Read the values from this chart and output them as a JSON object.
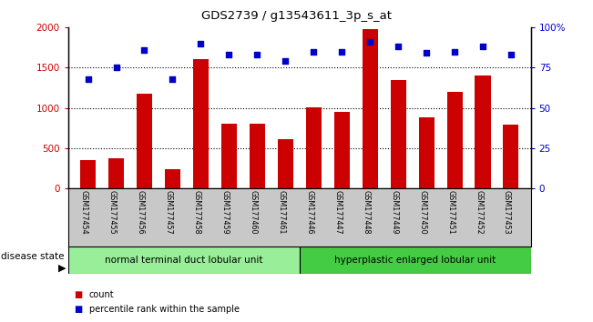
{
  "title": "GDS2739 / g13543611_3p_s_at",
  "categories": [
    "GSM177454",
    "GSM177455",
    "GSM177456",
    "GSM177457",
    "GSM177458",
    "GSM177459",
    "GSM177460",
    "GSM177461",
    "GSM177446",
    "GSM177447",
    "GSM177448",
    "GSM177449",
    "GSM177450",
    "GSM177451",
    "GSM177452",
    "GSM177453"
  ],
  "counts": [
    350,
    375,
    1175,
    240,
    1600,
    800,
    800,
    610,
    1010,
    950,
    1980,
    1340,
    880,
    1200,
    1400,
    790
  ],
  "percentiles": [
    68,
    75,
    86,
    68,
    90,
    83,
    83,
    79,
    85,
    85,
    91,
    88,
    84,
    85,
    88,
    83
  ],
  "group1_label": "normal terminal duct lobular unit",
  "group2_label": "hyperplastic enlarged lobular unit",
  "group1_count": 8,
  "group2_count": 8,
  "bar_color": "#cc0000",
  "dot_color": "#0000cc",
  "ylim_left": [
    0,
    2000
  ],
  "ylim_right": [
    0,
    100
  ],
  "yticks_left": [
    0,
    500,
    1000,
    1500,
    2000
  ],
  "yticks_right": [
    0,
    25,
    50,
    75,
    100
  ],
  "tick_area_color": "#c8c8c8",
  "group1_color": "#99ee99",
  "group2_color": "#44cc44",
  "legend_count_label": "count",
  "legend_pct_label": "percentile rank within the sample",
  "disease_state_label": "disease state"
}
